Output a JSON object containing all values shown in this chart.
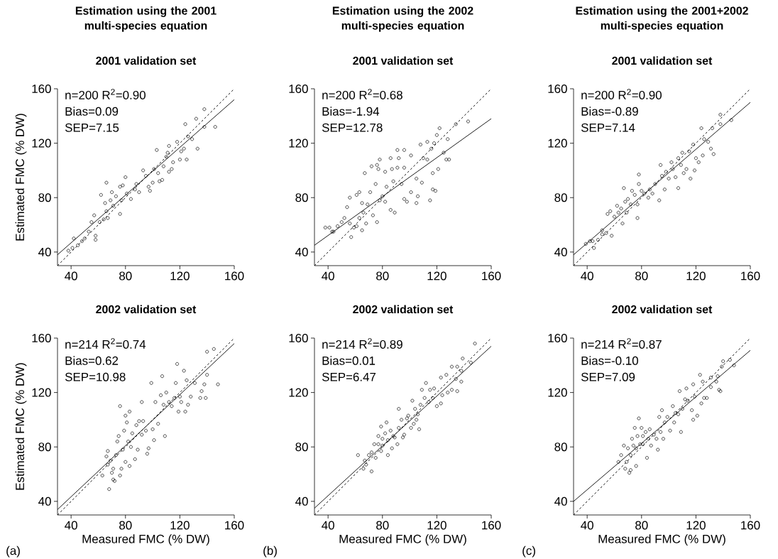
{
  "chart_data": [
    {
      "type": "scatter",
      "title": "Estimation using the 2001 multi-species equation",
      "subtitle": "2001 validation set",
      "ylabel": "Estimated FMC (% DW)",
      "xlim": [
        30,
        160
      ],
      "ylim": [
        30,
        160
      ],
      "xticks": [
        40,
        80,
        120,
        160
      ],
      "yticks": [
        40,
        80,
        120,
        160
      ],
      "annotations": [
        "n=200 R$^{2}$=0.90",
        "Bias=0.09",
        "SEP=7.15"
      ],
      "series": [
        {
          "type": "scatter",
          "marker": "circle",
          "color": "#000000",
          "x": [
            38,
            42,
            41,
            45,
            48,
            50,
            53,
            55,
            57,
            58,
            58,
            62,
            61,
            64,
            66,
            65,
            66,
            67,
            69,
            70,
            71,
            73,
            76,
            76,
            78,
            80,
            77,
            81,
            84,
            87,
            88,
            90,
            93,
            95,
            97,
            98,
            100,
            101,
            103,
            104,
            105,
            107,
            108,
            110,
            111,
            112,
            112,
            114,
            115,
            118,
            120,
            121,
            123,
            124,
            125,
            126,
            129,
            132,
            133,
            138,
            138,
            146
          ],
          "values": [
            41,
            50,
            43,
            45,
            48,
            50,
            55,
            62,
            67,
            52,
            49,
            82,
            62,
            64,
            91,
            76,
            70,
            65,
            78,
            84,
            74,
            81,
            88,
            68,
            89,
            95,
            78,
            83,
            79,
            86,
            90,
            84,
            100,
            96,
            88,
            85,
            91,
            101,
            115,
            98,
            92,
            93,
            103,
            110,
            113,
            99,
            118,
            101,
            106,
            121,
            108,
            114,
            116,
            134,
            108,
            125,
            123,
            138,
            116,
            145,
            132,
            132
          ]
        },
        {
          "type": "line",
          "line_style": "solid",
          "color": "#000000",
          "x": [
            30,
            160
          ],
          "values": [
            38,
            152
          ]
        },
        {
          "type": "line",
          "line_style": "dashed",
          "color": "#000000",
          "x": [
            30,
            160
          ],
          "values": [
            30,
            160
          ]
        }
      ]
    },
    {
      "type": "scatter",
      "title": "Estimation using the 2002 multi-species equation",
      "subtitle": "2001 validation set",
      "xlim": [
        30,
        160
      ],
      "ylim": [
        30,
        160
      ],
      "xticks": [
        40,
        80,
        120,
        160
      ],
      "yticks": [
        40,
        80,
        120,
        160
      ],
      "annotations": [
        "n=200 R$^{2}$=0.68",
        "Bias=-1.94",
        "SEP=12.78"
      ],
      "series": [
        {
          "type": "scatter",
          "marker": "circle",
          "color": "#000000",
          "x": [
            38,
            41,
            43,
            44,
            47,
            50,
            52,
            54,
            56,
            56,
            57,
            59,
            61,
            61,
            63,
            63,
            65,
            65,
            67,
            66,
            68,
            69,
            71,
            72,
            73,
            75,
            76,
            76,
            77,
            78,
            78,
            80,
            82,
            82,
            83,
            86,
            86,
            87,
            88,
            89,
            91,
            91,
            92,
            94,
            96,
            96,
            96,
            98,
            101,
            101,
            105,
            105,
            106,
            108,
            109,
            110,
            113,
            113,
            115,
            116,
            117,
            117,
            118,
            119,
            120,
            121,
            122,
            125,
            128,
            127,
            129,
            134,
            143
          ],
          "values": [
            58,
            58,
            55,
            55,
            59,
            62,
            65,
            73,
            80,
            61,
            51,
            58,
            59,
            82,
            84,
            65,
            56,
            76,
            98,
            69,
            61,
            75,
            84,
            103,
            67,
            90,
            104,
            62,
            101,
            108,
            78,
            81,
            99,
            77,
            88,
            109,
            71,
            101,
            92,
            69,
            102,
            115,
            109,
            90,
            102,
            115,
            79,
            77,
            84,
            111,
            76,
            94,
            81,
            119,
            91,
            109,
            121,
            108,
            78,
            116,
            86,
            98,
            120,
            85,
            126,
            101,
            131,
            113,
            123,
            108,
            108,
            134,
            136
          ]
        },
        {
          "type": "line",
          "line_style": "solid",
          "color": "#000000",
          "x": [
            30,
            160
          ],
          "values": [
            45,
            138
          ]
        },
        {
          "type": "line",
          "line_style": "dashed",
          "color": "#000000",
          "x": [
            30,
            160
          ],
          "values": [
            30,
            160
          ]
        }
      ]
    },
    {
      "type": "scatter",
      "title": "Estimation using the 2001+2002 multi-species equation",
      "subtitle": "2001 validation set",
      "xlim": [
        30,
        160
      ],
      "ylim": [
        30,
        160
      ],
      "xticks": [
        40,
        80,
        120,
        160
      ],
      "yticks": [
        40,
        80,
        120,
        160
      ],
      "annotations": [
        "n=200 R$^{2}$=0.90",
        "Bias=-0.89",
        "SEP=7.14"
      ],
      "series": [
        {
          "type": "scatter",
          "marker": "circle",
          "color": "#000000",
          "x": [
            39,
            42,
            45,
            44,
            48,
            51,
            51,
            54,
            55,
            57,
            58,
            60,
            62,
            63,
            65,
            66,
            67,
            68,
            69,
            70,
            72,
            73,
            75,
            77,
            77,
            78,
            78,
            80,
            82,
            85,
            86,
            88,
            90,
            93,
            94,
            95,
            97,
            98,
            100,
            102,
            103,
            105,
            107,
            107,
            109,
            110,
            111,
            113,
            115,
            116,
            118,
            119,
            120,
            122,
            124,
            125,
            126,
            129,
            131,
            133,
            132,
            138,
            138,
            146
          ],
          "values": [
            46,
            48,
            43,
            48,
            49,
            53,
            56,
            54,
            68,
            70,
            52,
            66,
            74,
            69,
            72,
            61,
            87,
            77,
            69,
            79,
            75,
            85,
            82,
            75,
            65,
            97,
            90,
            85,
            83,
            80,
            86,
            83,
            90,
            78,
            104,
            96,
            86,
            99,
            94,
            106,
            101,
            95,
            87,
            109,
            104,
            113,
            98,
            101,
            114,
            94,
            119,
            100,
            109,
            106,
            131,
            111,
            123,
            121,
            116,
            112,
            131,
            141,
            134,
            137
          ]
        },
        {
          "type": "line",
          "line_style": "solid",
          "color": "#000000",
          "x": [
            30,
            160
          ],
          "values": [
            38,
            150
          ]
        },
        {
          "type": "line",
          "line_style": "dashed",
          "color": "#000000",
          "x": [
            30,
            160
          ],
          "values": [
            30,
            160
          ]
        }
      ]
    },
    {
      "type": "scatter",
      "title": "2002 validation set",
      "xlabel": "Measured FMC (% DW)",
      "ylabel": "Estimated FMC (% DW)",
      "xlim": [
        30,
        160
      ],
      "ylim": [
        30,
        160
      ],
      "xticks": [
        40,
        80,
        120,
        160
      ],
      "yticks": [
        40,
        80,
        120,
        160
      ],
      "annotations": [
        "n=214 R$^{2}$=0.74",
        "Bias=0.62",
        "SEP=10.98",
        "(a)"
      ],
      "series": [
        {
          "type": "scatter",
          "marker": "circle",
          "color": "#000000",
          "x": [
            63,
            66,
            67,
            68,
            67,
            69,
            70,
            71,
            72,
            71,
            73,
            74,
            75,
            76,
            76,
            77,
            78,
            79,
            80,
            80,
            81,
            82,
            83,
            83,
            84,
            85,
            87,
            88,
            89,
            90,
            92,
            92,
            93,
            95,
            96,
            97,
            99,
            100,
            101,
            102,
            104,
            106,
            107,
            108,
            109,
            110,
            112,
            114,
            116,
            117,
            118,
            119,
            120,
            121,
            123,
            124,
            125,
            126,
            128,
            131,
            135,
            136,
            138,
            139,
            140,
            140,
            145,
            148
          ],
          "values": [
            59,
            73,
            67,
            49,
            77,
            70,
            61,
            56,
            55,
            64,
            74,
            84,
            88,
            59,
            110,
            64,
            78,
            92,
            103,
            69,
            98,
            84,
            106,
            66,
            80,
            90,
            71,
            96,
            78,
            99,
            89,
            113,
            99,
            92,
            75,
            79,
            127,
            93,
            85,
            113,
            97,
            118,
            132,
            111,
            88,
            120,
            113,
            110,
            116,
            127,
            141,
            106,
            117,
            113,
            136,
            106,
            129,
            111,
            117,
            127,
            116,
            121,
            126,
            116,
            133,
            150,
            152,
            126
          ]
        },
        {
          "type": "line",
          "line_style": "solid",
          "color": "#000000",
          "x": [
            30,
            160
          ],
          "values": [
            34,
            156
          ]
        },
        {
          "type": "line",
          "line_style": "dashed",
          "color": "#000000",
          "x": [
            30,
            160
          ],
          "values": [
            30,
            160
          ]
        }
      ]
    },
    {
      "type": "scatter",
      "title": "2002 validation set",
      "xlabel": "Measured FMC (% DW)",
      "xlim": [
        30,
        160
      ],
      "ylim": [
        30,
        160
      ],
      "xticks": [
        40,
        80,
        120,
        160
      ],
      "yticks": [
        40,
        80,
        120,
        160
      ],
      "annotations": [
        "n=214 R$^{2}$=0.89",
        "Bias=0.01",
        "SEP=6.47",
        "(b)"
      ],
      "series": [
        {
          "type": "scatter",
          "marker": "circle",
          "color": "#000000",
          "x": [
            62,
            66,
            67,
            68,
            70,
            72,
            72,
            74,
            75,
            77,
            77,
            79,
            79,
            80,
            80,
            82,
            83,
            84,
            84,
            86,
            87,
            88,
            89,
            91,
            92,
            92,
            94,
            95,
            96,
            98,
            99,
            101,
            102,
            103,
            104,
            105,
            106,
            107,
            108,
            109,
            111,
            112,
            114,
            115,
            117,
            118,
            120,
            123,
            123,
            124,
            127,
            128,
            131,
            131,
            134,
            135,
            135,
            138,
            138,
            139,
            145,
            148
          ],
          "values": [
            74,
            64,
            70,
            67,
            74,
            62,
            76,
            82,
            72,
            88,
            82,
            95,
            77,
            86,
            81,
            90,
            98,
            74,
            85,
            92,
            79,
            88,
            87,
            82,
            108,
            94,
            100,
            87,
            89,
            101,
            103,
            94,
            114,
            97,
            108,
            100,
            104,
            93,
            111,
            122,
            116,
            127,
            113,
            122,
            116,
            123,
            110,
            112,
            131,
            118,
            133,
            120,
            139,
            122,
            130,
            121,
            139,
            128,
            136,
            145,
            142,
            156
          ]
        },
        {
          "type": "line",
          "line_style": "solid",
          "color": "#000000",
          "x": [
            30,
            160
          ],
          "values": [
            35,
            154
          ]
        },
        {
          "type": "line",
          "line_style": "dashed",
          "color": "#000000",
          "x": [
            30,
            160
          ],
          "values": [
            30,
            160
          ]
        }
      ]
    },
    {
      "type": "scatter",
      "title": "2002 validation set",
      "xlabel": "Measured FMC (% DW)",
      "xlim": [
        30,
        160
      ],
      "ylim": [
        30,
        160
      ],
      "xticks": [
        40,
        80,
        120,
        160
      ],
      "yticks": [
        40,
        80,
        120,
        160
      ],
      "annotations": [
        "n=214 R$^{2}$=0.87",
        "Bias=-0.10",
        "SEP=7.09",
        "(c)"
      ],
      "series": [
        {
          "type": "scatter",
          "marker": "circle",
          "color": "#000000",
          "x": [
            63,
            65,
            67,
            68,
            69,
            70,
            71,
            72,
            72,
            73,
            74,
            75,
            76,
            76,
            77,
            78,
            79,
            80,
            81,
            81,
            83,
            84,
            85,
            86,
            87,
            89,
            91,
            92,
            93,
            94,
            95,
            96,
            97,
            99,
            101,
            103,
            104,
            105,
            107,
            108,
            109,
            110,
            112,
            113,
            114,
            117,
            118,
            118,
            119,
            121,
            123,
            124,
            125,
            126,
            128,
            131,
            131,
            135,
            136,
            137,
            138,
            139,
            140,
            145,
            148
          ],
          "values": [
            69,
            74,
            81,
            64,
            69,
            79,
            61,
            74,
            63,
            86,
            81,
            94,
            66,
            79,
            88,
            101,
            82,
            94,
            88,
            82,
            91,
            72,
            86,
            93,
            81,
            89,
            86,
            78,
            102,
            91,
            107,
            86,
            98,
            102,
            92,
            110,
            98,
            105,
            104,
            121,
            91,
            108,
            115,
            123,
            114,
            107,
            126,
            100,
            117,
            103,
            133,
            112,
            128,
            116,
            116,
            131,
            124,
            128,
            132,
            122,
            121,
            139,
            143,
            144,
            140
          ]
        },
        {
          "type": "line",
          "line_style": "solid",
          "color": "#000000",
          "x": [
            30,
            160
          ],
          "values": [
            40,
            151
          ]
        },
        {
          "type": "line",
          "line_style": "dashed",
          "color": "#000000",
          "x": [
            30,
            160
          ],
          "values": [
            30,
            160
          ]
        }
      ]
    }
  ]
}
